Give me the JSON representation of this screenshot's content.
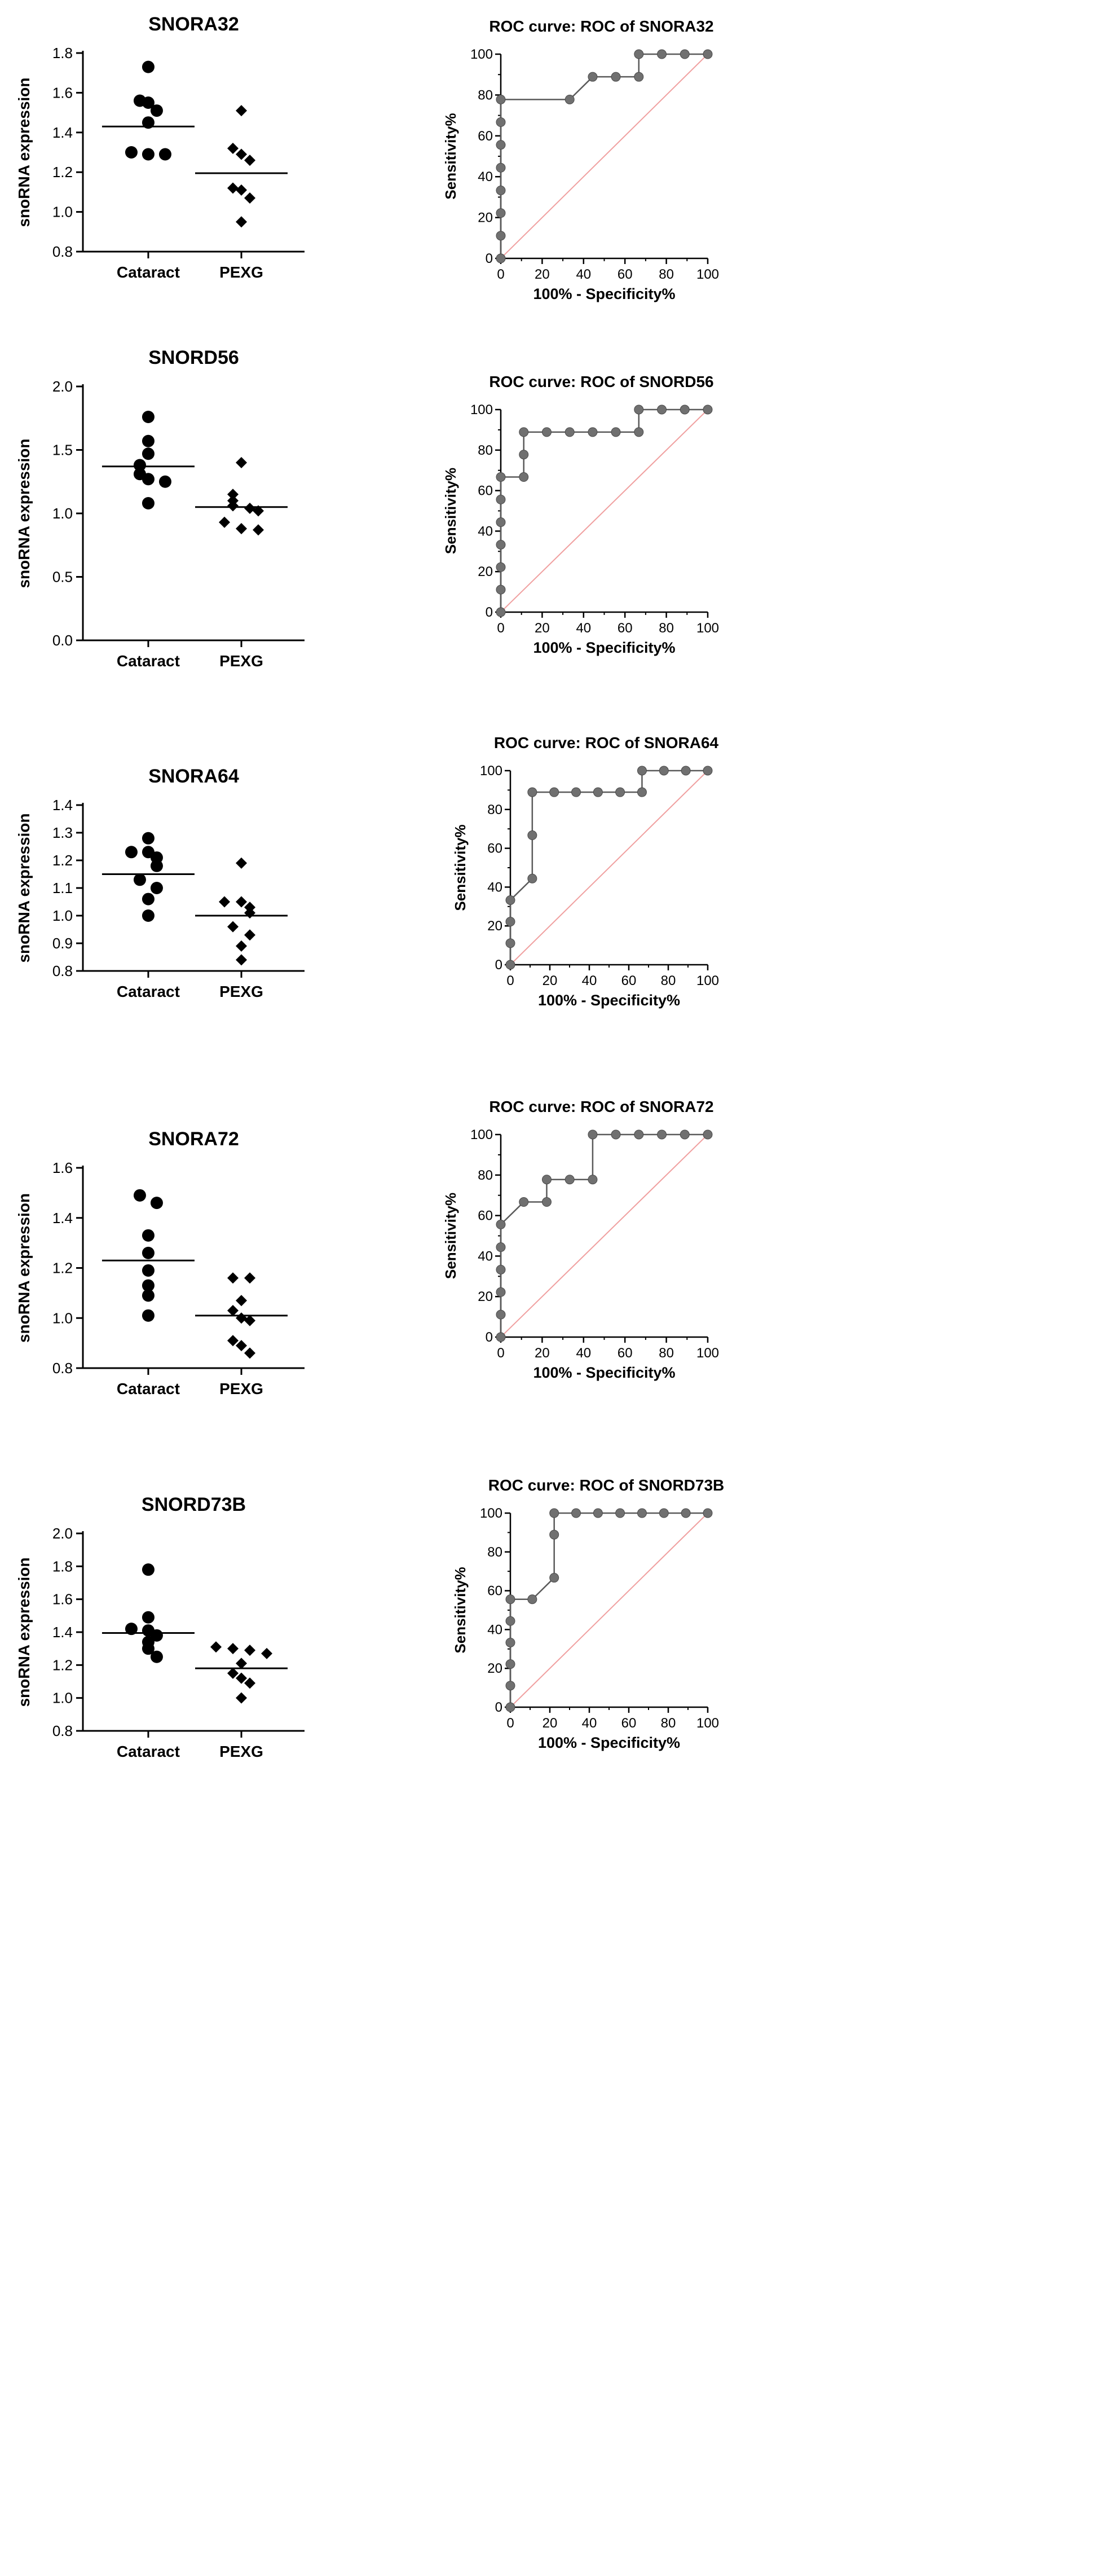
{
  "colors": {
    "axis": "#000000",
    "roc_line": "#5a5a5a",
    "roc_marker": "#707070",
    "reference_line": "#f0a0a0",
    "mean_line": "#000000"
  },
  "chart_data": [
    {
      "type": "scatter",
      "title": "SNORA32",
      "xlabel": "",
      "ylabel": "snoRNA expression",
      "categories": [
        "Cataract",
        "PEXG"
      ],
      "ylim": [
        0.8,
        1.8
      ],
      "yticks": [
        "0.8",
        "1.0",
        "1.2",
        "1.4",
        "1.6",
        "1.8"
      ],
      "series": [
        {
          "name": "Cataract",
          "marker": "circle",
          "values": [
            1.73,
            1.56,
            1.55,
            1.51,
            1.45,
            1.3,
            1.29,
            1.29
          ],
          "mean": 1.43
        },
        {
          "name": "PEXG",
          "marker": "diamond",
          "values": [
            1.51,
            1.32,
            1.29,
            1.26,
            1.12,
            1.11,
            1.07,
            0.95
          ],
          "mean": 1.195
        }
      ]
    },
    {
      "type": "line",
      "title": "ROC curve: ROC of SNORA32",
      "xlabel": "100% - Specificity%",
      "ylabel": "Sensitivity%",
      "xlim": [
        0,
        100
      ],
      "ylim": [
        0,
        100
      ],
      "xticks": [
        "0",
        "20",
        "40",
        "60",
        "80",
        "100"
      ],
      "yticks": [
        "0",
        "20",
        "40",
        "60",
        "80",
        "100"
      ],
      "series": [
        {
          "name": "ROC",
          "x": [
            0,
            0,
            0,
            0,
            0,
            0,
            0,
            0,
            33.3,
            44.4,
            55.6,
            66.7,
            66.7,
            77.8,
            88.9,
            100
          ],
          "y": [
            0,
            11.1,
            22.2,
            33.3,
            44.4,
            55.6,
            66.7,
            77.8,
            77.8,
            88.9,
            88.9,
            88.9,
            100,
            100,
            100,
            100
          ]
        },
        {
          "name": "Reference",
          "x": [
            0,
            100
          ],
          "y": [
            0,
            100
          ]
        }
      ]
    },
    {
      "type": "scatter",
      "title": "SNORD56",
      "xlabel": "",
      "ylabel": "snoRNA expression",
      "categories": [
        "Cataract",
        "PEXG"
      ],
      "ylim": [
        0.0,
        2.0
      ],
      "yticks": [
        "0.0",
        "0.5",
        "1.0",
        "1.5",
        "2.0"
      ],
      "series": [
        {
          "name": "Cataract",
          "marker": "circle",
          "values": [
            1.76,
            1.57,
            1.47,
            1.38,
            1.31,
            1.27,
            1.25,
            1.08
          ],
          "mean": 1.37
        },
        {
          "name": "PEXG",
          "marker": "diamond",
          "values": [
            1.4,
            1.15,
            1.1,
            1.06,
            1.04,
            1.02,
            0.93,
            0.88,
            0.87
          ],
          "mean": 1.05
        }
      ]
    },
    {
      "type": "line",
      "title": "ROC curve: ROC of SNORD56",
      "xlabel": "100% - Specificity%",
      "ylabel": "Sensitivity%",
      "xlim": [
        0,
        100
      ],
      "ylim": [
        0,
        100
      ],
      "xticks": [
        "0",
        "20",
        "40",
        "60",
        "80",
        "100"
      ],
      "yticks": [
        "0",
        "20",
        "40",
        "60",
        "80",
        "100"
      ],
      "series": [
        {
          "name": "ROC",
          "x": [
            0,
            0,
            0,
            0,
            0,
            0,
            0,
            11.1,
            11.1,
            11.1,
            22.2,
            33.3,
            44.4,
            55.6,
            66.7,
            66.7,
            77.8,
            88.9,
            100
          ],
          "y": [
            0,
            11.1,
            22.2,
            33.3,
            44.4,
            55.6,
            66.7,
            66.7,
            77.8,
            88.9,
            88.9,
            88.9,
            88.9,
            88.9,
            88.9,
            100,
            100,
            100,
            100
          ]
        },
        {
          "name": "Reference",
          "x": [
            0,
            100
          ],
          "y": [
            0,
            100
          ]
        }
      ]
    },
    {
      "type": "scatter",
      "title": "SNORA64",
      "xlabel": "",
      "ylabel": "snoRNA expression",
      "categories": [
        "Cataract",
        "PEXG"
      ],
      "ylim": [
        0.8,
        1.4
      ],
      "yticks": [
        "0.8",
        "0.9",
        "1.0",
        "1.1",
        "1.2",
        "1.3",
        "1.4"
      ],
      "series": [
        {
          "name": "Cataract",
          "marker": "circle",
          "values": [
            1.28,
            1.23,
            1.23,
            1.21,
            1.18,
            1.13,
            1.1,
            1.06,
            1.0
          ],
          "mean": 1.15
        },
        {
          "name": "PEXG",
          "marker": "diamond",
          "values": [
            1.19,
            1.05,
            1.05,
            1.03,
            1.01,
            0.96,
            0.93,
            0.89,
            0.84
          ],
          "mean": 1.0
        }
      ]
    },
    {
      "type": "line",
      "title": "ROC curve: ROC of SNORA64",
      "xlabel": "100% - Specificity%",
      "ylabel": "Sensitivity%",
      "xlim": [
        0,
        100
      ],
      "ylim": [
        0,
        100
      ],
      "xticks": [
        "0",
        "20",
        "40",
        "60",
        "80",
        "100"
      ],
      "yticks": [
        "0",
        "20",
        "40",
        "60",
        "80",
        "100"
      ],
      "series": [
        {
          "name": "ROC",
          "x": [
            0,
            0,
            0,
            0,
            11.1,
            11.1,
            11.1,
            22.2,
            33.3,
            44.4,
            55.6,
            66.7,
            66.7,
            77.8,
            88.9,
            100
          ],
          "y": [
            0,
            11.1,
            22.2,
            33.3,
            44.4,
            66.7,
            88.9,
            88.9,
            88.9,
            88.9,
            88.9,
            88.9,
            100,
            100,
            100,
            100
          ]
        },
        {
          "name": "Reference",
          "x": [
            0,
            100
          ],
          "y": [
            0,
            100
          ]
        }
      ]
    },
    {
      "type": "scatter",
      "title": "SNORA72",
      "xlabel": "",
      "ylabel": "snoRNA expression",
      "categories": [
        "Cataract",
        "PEXG"
      ],
      "ylim": [
        0.8,
        1.6
      ],
      "yticks": [
        "0.8",
        "1.0",
        "1.2",
        "1.4",
        "1.6"
      ],
      "series": [
        {
          "name": "Cataract",
          "marker": "circle",
          "values": [
            1.49,
            1.46,
            1.33,
            1.26,
            1.19,
            1.13,
            1.09,
            1.01
          ],
          "mean": 1.23
        },
        {
          "name": "PEXG",
          "marker": "diamond",
          "values": [
            1.16,
            1.16,
            1.07,
            1.03,
            1.0,
            0.99,
            0.91,
            0.89,
            0.86
          ],
          "mean": 1.01
        }
      ]
    },
    {
      "type": "line",
      "title": "ROC curve: ROC of SNORA72",
      "xlabel": "100% - Specificity%",
      "ylabel": "Sensitivity%",
      "xlim": [
        0,
        100
      ],
      "ylim": [
        0,
        100
      ],
      "xticks": [
        "0",
        "20",
        "40",
        "60",
        "80",
        "100"
      ],
      "yticks": [
        "0",
        "20",
        "40",
        "60",
        "80",
        "100"
      ],
      "series": [
        {
          "name": "ROC",
          "x": [
            0,
            0,
            0,
            0,
            0,
            0,
            11.1,
            22.2,
            22.2,
            33.3,
            44.4,
            44.4,
            55.6,
            66.7,
            77.8,
            88.9,
            100
          ],
          "y": [
            0,
            11.1,
            22.2,
            33.3,
            44.4,
            55.6,
            66.7,
            66.7,
            77.8,
            77.8,
            77.8,
            100,
            100,
            100,
            100,
            100,
            100
          ]
        },
        {
          "name": "Reference",
          "x": [
            0,
            100
          ],
          "y": [
            0,
            100
          ]
        }
      ]
    },
    {
      "type": "scatter",
      "title": "SNORD73B",
      "xlabel": "",
      "ylabel": "snoRNA expression",
      "categories": [
        "Cataract",
        "PEXG"
      ],
      "ylim": [
        0.8,
        2.0
      ],
      "yticks": [
        "0.8",
        "1.0",
        "1.2",
        "1.4",
        "1.6",
        "1.8",
        "2.0"
      ],
      "series": [
        {
          "name": "Cataract",
          "marker": "circle",
          "values": [
            1.78,
            1.49,
            1.42,
            1.41,
            1.38,
            1.34,
            1.3,
            1.25
          ],
          "mean": 1.395
        },
        {
          "name": "PEXG",
          "marker": "diamond",
          "values": [
            1.31,
            1.3,
            1.29,
            1.27,
            1.21,
            1.15,
            1.12,
            1.09,
            1.0
          ],
          "mean": 1.18
        }
      ]
    },
    {
      "type": "line",
      "title": "ROC curve: ROC of SNORD73B",
      "xlabel": "100% - Specificity%",
      "ylabel": "Sensitivity%",
      "xlim": [
        0,
        100
      ],
      "ylim": [
        0,
        100
      ],
      "xticks": [
        "0",
        "20",
        "40",
        "60",
        "80",
        "100"
      ],
      "yticks": [
        "0",
        "20",
        "40",
        "60",
        "80",
        "100"
      ],
      "series": [
        {
          "name": "ROC",
          "x": [
            0,
            0,
            0,
            0,
            0,
            0,
            11.1,
            22.2,
            22.2,
            22.2,
            33.3,
            44.4,
            55.6,
            66.7,
            77.8,
            88.9,
            100
          ],
          "y": [
            0,
            11.1,
            22.2,
            33.3,
            44.4,
            55.6,
            55.6,
            66.7,
            88.9,
            100,
            100,
            100,
            100,
            100,
            100,
            100,
            100
          ]
        },
        {
          "name": "Reference",
          "x": [
            0,
            100
          ],
          "y": [
            0,
            100
          ]
        }
      ]
    }
  ]
}
